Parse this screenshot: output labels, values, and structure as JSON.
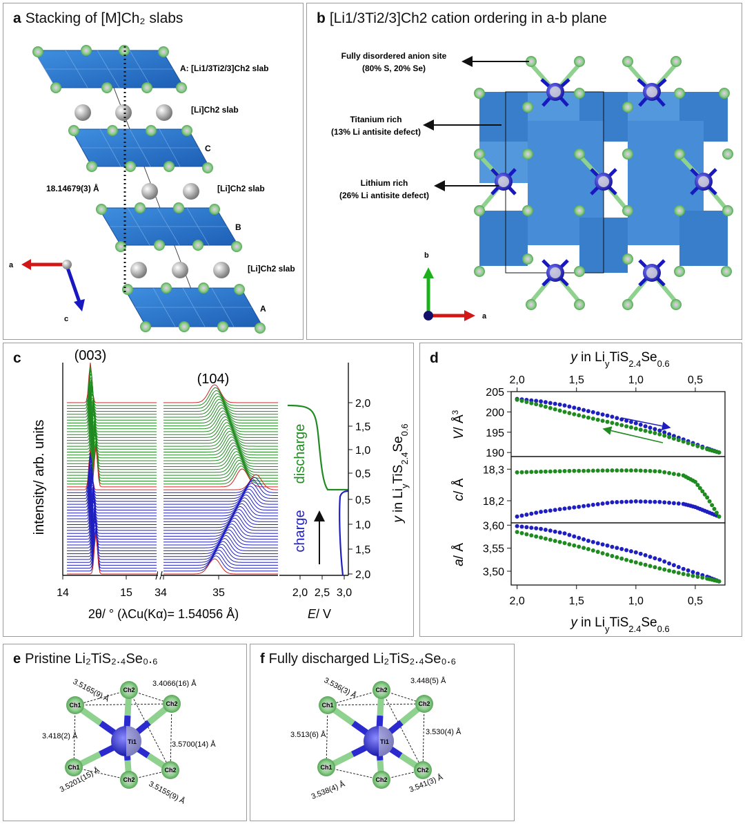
{
  "panel_a": {
    "letter": "a",
    "title": "Stacking of [M]Ch₂ slabs",
    "slab_A_top": "A: [Li1/3Ti2/3]Ch2 slab",
    "li_slab_1": "[Li]Ch2 slab",
    "slab_C": "C",
    "spacing": "18.14679(3) Å",
    "li_slab_2": "[Li]Ch2 slab",
    "slab_B": "B",
    "li_slab_3": "[Li]Ch2 slab",
    "slab_A_bottom": "A",
    "axis_a": "a",
    "axis_c": "c"
  },
  "panel_b": {
    "letter": "b",
    "title": "[Li1/3Ti2/3]Ch2 cation ordering in a-b plane",
    "anion_line1": "Fully disordered anion site",
    "anion_line2": "(80% S, 20% Se)",
    "ti_line1": "Titanium rich",
    "ti_line2": "(13% Li antisite defect)",
    "li_line1": "Lithium rich",
    "li_line2": "(26% Li antisite defect)",
    "axis_b": "b",
    "axis_a": "a"
  },
  "panel_c": {
    "letter": "c",
    "peak_003": "(003)",
    "peak_104": "(104)",
    "ylabel": "intensity/ arb. units",
    "x_ticks_left": [
      "14",
      "15",
      "34",
      "35"
    ],
    "xlabel": "2θ/ ° (λCu(Kα)= 1.54056 Å)",
    "e_ticks": [
      "2,0",
      "2,5",
      "3,0"
    ],
    "e_label": "E/ V",
    "y_ticks": [
      "2,0",
      "1,5",
      "1,0",
      "0,5",
      "0,5",
      "1,0",
      "1,5",
      "2,0"
    ],
    "y_label": "y in LiyTiS2.4Se0.6",
    "discharge_label": "discharge",
    "charge_label": "charge",
    "colors": {
      "discharge": "#1f8a1f",
      "charge": "#1f1fbf",
      "boundary": "#d02020"
    }
  },
  "panel_d": {
    "letter": "d",
    "top_axis_label": "y in LiyTiS2.4Se0.6",
    "bottom_axis_label": "y in LiyTiS2.4Se0.6",
    "x_ticks": [
      "2,0",
      "1,5",
      "1,0",
      "0,5"
    ],
    "v_label": "V/ Å³",
    "v_ticks": [
      "205",
      "200",
      "195",
      "190"
    ],
    "c_label": "c/ Å",
    "c_ticks": [
      "18,3",
      "18,2"
    ],
    "a_label": "a/ Å",
    "a_ticks": [
      "3,60",
      "3,55",
      "3,50"
    ]
  },
  "chart_data": [
    {
      "type": "scatter",
      "title": "",
      "xlabel": "y in LiyTiS2.4Se0.6",
      "ylabel": "V/ Å³",
      "xlim": [
        2.05,
        0.25
      ],
      "ylim": [
        189,
        205
      ],
      "series": [
        {
          "x": [
            2.0,
            1.8,
            1.6,
            1.4,
            1.2,
            1.0,
            0.8,
            0.6,
            0.4,
            0.3
          ],
          "values": [
            203.2,
            202.6,
            201.6,
            200.2,
            198.8,
            197.2,
            195.4,
            193.2,
            191.0,
            190.0
          ]
        },
        {
          "x": [
            2.0,
            1.8,
            1.6,
            1.4,
            1.2,
            1.0,
            0.8,
            0.6,
            0.4,
            0.3
          ],
          "values": [
            203.0,
            201.6,
            200.0,
            198.6,
            197.3,
            195.9,
            194.5,
            192.7,
            190.8,
            190.0
          ]
        }
      ]
    },
    {
      "type": "scatter",
      "title": "",
      "xlabel": "y in LiyTiS2.4Se0.6",
      "ylabel": "c/ Å",
      "xlim": [
        2.05,
        0.25
      ],
      "ylim": [
        18.13,
        18.34
      ],
      "series": [
        {
          "x": [
            2.0,
            1.8,
            1.6,
            1.4,
            1.2,
            1.0,
            0.8,
            0.6,
            0.5,
            0.4,
            0.3
          ],
          "values": [
            18.15,
            18.165,
            18.175,
            18.185,
            18.195,
            18.198,
            18.196,
            18.19,
            18.18,
            18.165,
            18.15
          ]
        },
        {
          "x": [
            2.0,
            1.8,
            1.6,
            1.4,
            1.2,
            1.0,
            0.8,
            0.6,
            0.5,
            0.4,
            0.3
          ],
          "values": [
            18.29,
            18.292,
            18.294,
            18.295,
            18.296,
            18.296,
            18.293,
            18.28,
            18.26,
            18.21,
            18.15
          ]
        }
      ]
    },
    {
      "type": "scatter",
      "title": "",
      "xlabel": "y in LiyTiS2.4Se0.6",
      "ylabel": "a/ Å",
      "xlim": [
        2.05,
        0.25
      ],
      "ylim": [
        3.47,
        3.605
      ],
      "series": [
        {
          "x": [
            2.0,
            1.8,
            1.6,
            1.4,
            1.2,
            1.0,
            0.8,
            0.6,
            0.4,
            0.3
          ],
          "values": [
            3.598,
            3.592,
            3.582,
            3.566,
            3.553,
            3.541,
            3.525,
            3.505,
            3.488,
            3.478
          ]
        },
        {
          "x": [
            2.0,
            1.8,
            1.6,
            1.4,
            1.2,
            1.0,
            0.8,
            0.6,
            0.4,
            0.3
          ],
          "values": [
            3.585,
            3.573,
            3.561,
            3.548,
            3.533,
            3.519,
            3.506,
            3.494,
            3.484,
            3.478
          ]
        }
      ]
    }
  ],
  "panel_e": {
    "letter": "e",
    "title": "Pristine Li₂TiS₂.₄Se₀.₆",
    "center_label": "Ti1",
    "atoms": [
      "Ch2",
      "Ch1",
      "Ch2",
      "Ch1",
      "Ch2",
      "Ch2"
    ],
    "distances": [
      "3.5165(9) Å",
      "3.4066(16) Å",
      "3.418(2) Å",
      "3.5700(14) Å",
      "3.5201(15) Å",
      "3.5155(9) Å"
    ]
  },
  "panel_f": {
    "letter": "f",
    "title": "Fully discharged Li₂TiS₂.₄Se₀.₆",
    "center_label": "Ti1",
    "atoms": [
      "Ch2",
      "Ch1",
      "Ch2",
      "Ch1",
      "Ch2",
      "Ch2"
    ],
    "distances": [
      "3.536(3) Å",
      "3.448(5) Å",
      "3.513(6) Å",
      "3.530(4) Å",
      "3.538(4) Å",
      "3.541(3) Å"
    ]
  }
}
